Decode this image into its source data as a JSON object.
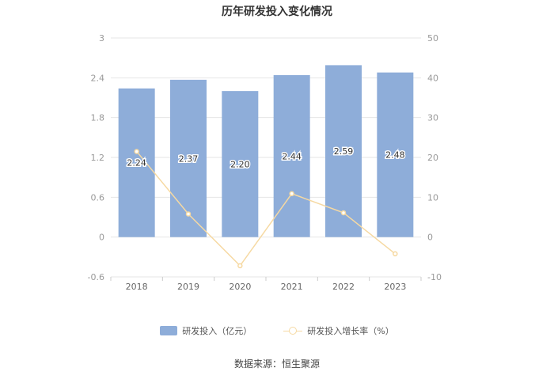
{
  "page": {
    "title": "历年研发投入变化情况",
    "source": "数据来源：恒生聚源"
  },
  "colors": {
    "bar": "#8eadd9",
    "line": "#f6d9a2",
    "grid": "#e6e6e6",
    "axis_text": "#999999"
  },
  "chart_data": {
    "type": "bar",
    "title": "历年研发投入变化情况",
    "categories": [
      "2018",
      "2019",
      "2020",
      "2021",
      "2022",
      "2023"
    ],
    "series": [
      {
        "name": "研发投入（亿元）",
        "type": "bar",
        "axis": "left",
        "values": [
          2.24,
          2.37,
          2.2,
          2.44,
          2.59,
          2.48
        ],
        "labels": [
          "2.24",
          "2.37",
          "2.20",
          "2.44",
          "2.59",
          "2.48"
        ]
      },
      {
        "name": "研发投入增长率（%）",
        "type": "line",
        "axis": "right",
        "values": [
          21.5,
          5.8,
          -7.2,
          10.9,
          6.1,
          -4.2
        ]
      }
    ],
    "y_left": {
      "min": -0.6,
      "max": 3,
      "ticks": [
        "-0.6",
        "0",
        "0.6",
        "1.2",
        "1.8",
        "2.4",
        "3"
      ]
    },
    "y_right": {
      "min": -10,
      "max": 50,
      "ticks": [
        "-10",
        "0",
        "10",
        "20",
        "30",
        "40",
        "50"
      ]
    },
    "grid": true,
    "legend_position": "bottom"
  }
}
